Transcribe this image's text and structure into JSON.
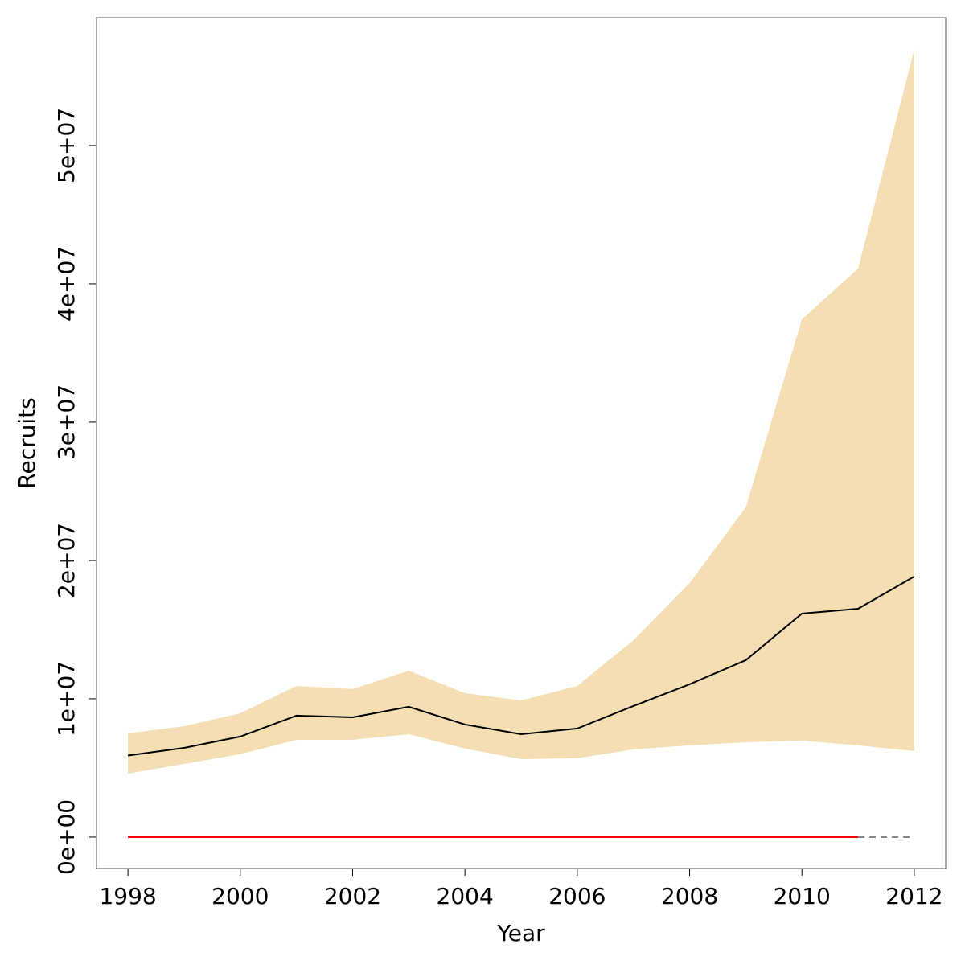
{
  "chart_data": {
    "type": "line",
    "xlabel": "Year",
    "ylabel": "Recruits",
    "x": [
      1998,
      1999,
      2000,
      2001,
      2002,
      2003,
      2004,
      2005,
      2006,
      2007,
      2008,
      2009,
      2010,
      2011,
      2012
    ],
    "series": [
      {
        "color": "#000000",
        "values": [
          5900000,
          6450000,
          7270000,
          8780000,
          8660000,
          9420000,
          8140000,
          7440000,
          7850000,
          9480000,
          11050000,
          12790000,
          16160000,
          16510000,
          18840000
        ]
      }
    ],
    "band": {
      "color": "#f5deb3",
      "upper": [
        7500000,
        8020000,
        8950000,
        10930000,
        10700000,
        12030000,
        10410000,
        9880000,
        10930000,
        14240000,
        18370000,
        23840000,
        37440000,
        41100000,
        56920000
      ],
      "lower": [
        4590000,
        5290000,
        5990000,
        7030000,
        7030000,
        7440000,
        6400000,
        5640000,
        5700000,
        6340000,
        6630000,
        6860000,
        6980000,
        6630000,
        6220000
      ]
    },
    "reference": [
      {
        "color": "#ff0000",
        "dashed": false,
        "values": [
          0,
          0,
          0,
          0,
          0,
          0,
          0,
          0,
          0,
          0,
          0,
          0,
          0,
          0,
          null
        ]
      },
      {
        "color": "#888888",
        "dashed": true,
        "values": [
          null,
          null,
          null,
          null,
          null,
          null,
          null,
          null,
          null,
          null,
          null,
          null,
          null,
          0,
          0
        ]
      }
    ],
    "xlim": [
      1997.44,
      2012.56
    ],
    "ylim": [
      -2270000,
      59240000
    ],
    "xticks": [
      1998,
      2000,
      2002,
      2004,
      2006,
      2008,
      2010,
      2012
    ],
    "yticks": [
      {
        "value": 0,
        "label": "0e+00"
      },
      {
        "value": 10000000,
        "label": "1e+07"
      },
      {
        "value": 20000000,
        "label": "2e+07"
      },
      {
        "value": 30000000,
        "label": "3e+07"
      },
      {
        "value": 40000000,
        "label": "4e+07"
      },
      {
        "value": 50000000,
        "label": "5e+07"
      }
    ]
  }
}
